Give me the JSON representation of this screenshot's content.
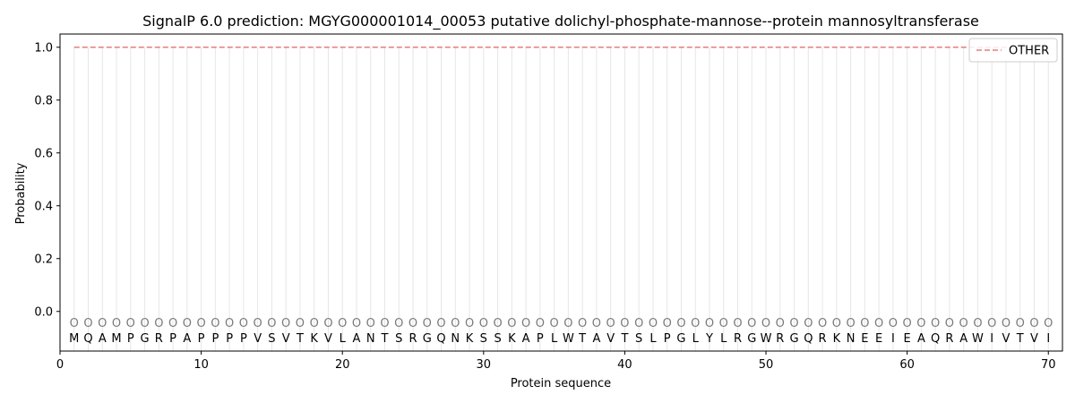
{
  "chart_data": {
    "type": "line",
    "title": "SignalP 6.0 prediction: MGYG000001014_00053 putative dolichyl-phosphate-mannose--protein mannosyltransferase",
    "xlabel": "Protein sequence",
    "ylabel": "Probability",
    "xlim": [
      0,
      71
    ],
    "ylim": [
      -0.15,
      1.05
    ],
    "x_ticks": [
      0,
      10,
      20,
      30,
      40,
      50,
      60,
      70
    ],
    "y_ticks": [
      0.0,
      0.2,
      0.4,
      0.6,
      0.8,
      1.0
    ],
    "y_tick_labels": [
      "0.0",
      "0.2",
      "0.4",
      "0.6",
      "0.8",
      "1.0"
    ],
    "legend_position": "top-right",
    "sequence": [
      "M",
      "Q",
      "A",
      "M",
      "P",
      "G",
      "R",
      "P",
      "A",
      "P",
      "P",
      "P",
      "P",
      "V",
      "S",
      "V",
      "T",
      "K",
      "V",
      "L",
      "A",
      "N",
      "T",
      "S",
      "R",
      "G",
      "Q",
      "N",
      "K",
      "S",
      "S",
      "K",
      "A",
      "P",
      "L",
      "W",
      "T",
      "A",
      "V",
      "T",
      "S",
      "L",
      "P",
      "G",
      "L",
      "Y",
      "L",
      "R",
      "G",
      "W",
      "R",
      "G",
      "Q",
      "R",
      "K",
      "N",
      "E",
      "E",
      "I",
      "E",
      "A",
      "Q",
      "R",
      "A",
      "W",
      "I",
      "V",
      "T",
      "V",
      "I"
    ],
    "predicted_label": "O",
    "series": [
      {
        "name": "OTHER",
        "style": "dashed",
        "color": "#e87b7b",
        "x_start": 1,
        "x_end": 70,
        "value": 1.0
      }
    ],
    "colors": {
      "gridline": "#e6e6e6",
      "olabel": "#7a7a7a",
      "axis": "#000000"
    }
  }
}
